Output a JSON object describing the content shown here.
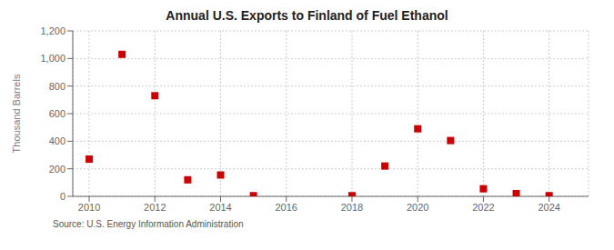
{
  "chart_data": {
    "type": "scatter",
    "title": "Annual U.S. Exports to Finland of Fuel Ethanol",
    "y_label": "Thousand Barrels",
    "annotations": [
      "Source: U.S. Energy Information Administration"
    ],
    "x": [
      2010,
      2011,
      2012,
      2013,
      2014,
      2015,
      2018,
      2019,
      2020,
      2021,
      2022,
      2023,
      2024
    ],
    "values": [
      270,
      1030,
      730,
      120,
      155,
      5,
      5,
      220,
      490,
      405,
      55,
      20,
      5
    ],
    "color": "#cc0000",
    "marker": "square",
    "xlim": [
      2009.5,
      2025.2
    ],
    "ylim": [
      0,
      1200
    ],
    "xticks": [
      2010,
      2012,
      2014,
      2016,
      2018,
      2020,
      2022,
      2024
    ],
    "yticks": [
      0,
      200,
      400,
      600,
      800,
      {
        "value": 1000,
        "label": "1,000"
      },
      {
        "value": 1200,
        "label": "1,200"
      }
    ],
    "grid": true
  }
}
